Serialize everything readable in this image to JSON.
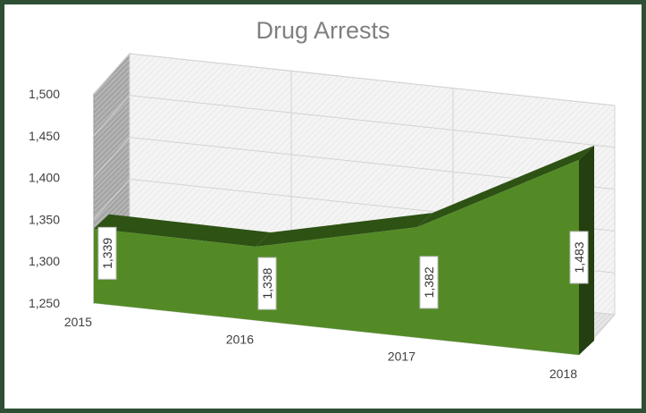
{
  "chart_data": {
    "type": "area",
    "title": "Drug Arrests",
    "categories": [
      "2015",
      "2016",
      "2017",
      "2018"
    ],
    "series": [
      {
        "values": [
          1339,
          1338,
          1382,
          1483
        ]
      }
    ],
    "ylim": [
      1250,
      1500
    ],
    "yticks": [
      1250,
      1300,
      1350,
      1400,
      1450,
      1500
    ],
    "ytick_labels": [
      "1,250",
      "1,300",
      "1,350",
      "1,400",
      "1,450",
      "1,500"
    ],
    "data_labels": [
      "1,339",
      "1,338",
      "1,382",
      "1,483"
    ],
    "grid": true,
    "legend": "none",
    "style": "3d"
  },
  "colors": {
    "area_front": "#538a26",
    "area_top": "#2e5214",
    "area_side": "#243f10",
    "frame_border": "#2f4f34",
    "title": "#808080",
    "axis_text": "#404040",
    "back_wall": "#f1f1f1",
    "side_wall": "#a6a6a6",
    "floor": "#e1e1e1",
    "grid": "#d3d3d3"
  }
}
